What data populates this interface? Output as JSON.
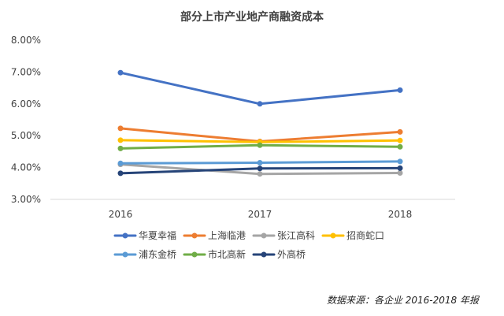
{
  "chart_data": {
    "type": "line",
    "title": "部分上市产业地产商融资成本",
    "categories": [
      "2016",
      "2017",
      "2018"
    ],
    "ylim": [
      3.0,
      8.0
    ],
    "yticks": [
      "8.00%",
      "7.00%",
      "6.00%",
      "5.00%",
      "4.00%",
      "3.00%"
    ],
    "ytick_values": [
      8,
      7,
      6,
      5,
      4,
      3
    ],
    "grid": false,
    "legend_position": "bottom",
    "series": [
      {
        "name": "华夏幸福",
        "color": "#4472C4",
        "values": [
          6.98,
          6.0,
          6.43
        ]
      },
      {
        "name": "上海临港",
        "color": "#ED7D31",
        "values": [
          5.23,
          4.82,
          5.12
        ]
      },
      {
        "name": "张江高科",
        "color": "#A5A5A5",
        "values": [
          4.1,
          3.8,
          3.83
        ]
      },
      {
        "name": "招商蛇口",
        "color": "#FFC000",
        "values": [
          4.86,
          4.8,
          4.85
        ]
      },
      {
        "name": "浦东金桥",
        "color": "#5B9BD5",
        "values": [
          4.13,
          4.15,
          4.19
        ]
      },
      {
        "name": "市北高新",
        "color": "#70AD47",
        "values": [
          4.6,
          4.7,
          4.65
        ]
      },
      {
        "name": "外高桥",
        "color": "#264478",
        "values": [
          3.82,
          3.97,
          3.98
        ]
      }
    ]
  },
  "source_note": "数据来源：各企业 2016-2018 年报"
}
